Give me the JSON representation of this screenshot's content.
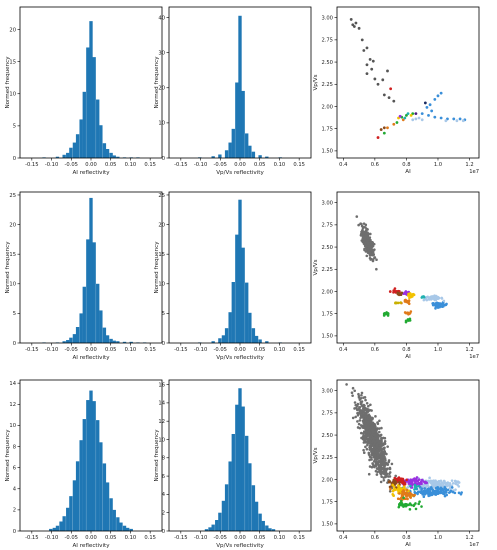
{
  "figure": {
    "xticks_refl": [
      -0.15,
      -0.1,
      -0.05,
      0.0,
      0.05,
      0.1,
      0.15
    ],
    "xticks_ai": [
      0.4,
      0.6,
      0.8,
      1.0,
      1.2
    ],
    "yticks_vpvs": [
      1.5,
      1.75,
      2.0,
      2.25,
      2.5,
      2.75,
      3.0
    ],
    "sci_label": "1e7"
  },
  "chart_data": [
    {
      "type": "bar",
      "xlabel": "AI reflectivity",
      "ylabel": "Normed frequency",
      "xlim": [
        -0.18,
        0.18
      ],
      "ylim": [
        0,
        23.5
      ],
      "yticks": [
        0,
        5,
        10,
        15,
        20
      ],
      "bin_width": 0.0085,
      "bin_centers": [
        -0.119,
        -0.085,
        -0.068,
        -0.059,
        -0.051,
        -0.042,
        -0.034,
        -0.025,
        -0.017,
        -0.008,
        0.0,
        0.008,
        0.017,
        0.025,
        0.034,
        0.042,
        0.051,
        0.059,
        0.068,
        0.085,
        0.102,
        0.119
      ],
      "values": [
        0.1,
        0.2,
        0.5,
        0.8,
        1.6,
        2.4,
        3.7,
        6.0,
        10.3,
        17.2,
        21.3,
        15.7,
        9.1,
        5.1,
        2.3,
        1.4,
        0.8,
        0.4,
        0.2,
        0.1,
        0.1,
        0.1
      ]
    },
    {
      "type": "bar",
      "xlabel": "Vp/Vs reflectivity",
      "ylabel": "Normed frequency",
      "xlim": [
        -0.18,
        0.18
      ],
      "ylim": [
        0,
        43
      ],
      "yticks": [
        0,
        10,
        20,
        30,
        40
      ],
      "bin_width": 0.0085,
      "bin_centers": [
        -0.102,
        -0.068,
        -0.051,
        -0.034,
        -0.025,
        -0.017,
        -0.008,
        0.0,
        0.008,
        0.017,
        0.025,
        0.034,
        0.051,
        0.068,
        0.102
      ],
      "values": [
        0.2,
        0.5,
        1.0,
        2.2,
        4.4,
        8.3,
        21.5,
        40.5,
        19.1,
        7.0,
        3.5,
        1.8,
        0.8,
        0.4,
        0.2
      ]
    },
    {
      "type": "scatter",
      "xlabel": "AI",
      "ylabel": "Vp/Vs",
      "xlim": [
        0.36,
        1.26
      ],
      "ylim": [
        1.42,
        3.12
      ],
      "groups": [
        {
          "color": "#555555",
          "points": [
            [
              0.45,
              2.98
            ],
            [
              0.46,
              2.92
            ],
            [
              0.47,
              2.9
            ],
            [
              0.48,
              2.94
            ],
            [
              0.5,
              2.88
            ],
            [
              0.52,
              2.75
            ],
            [
              0.53,
              2.63
            ],
            [
              0.55,
              2.66
            ],
            [
              0.57,
              2.53
            ],
            [
              0.58,
              2.42
            ],
            [
              0.55,
              2.37
            ],
            [
              0.6,
              2.31
            ],
            [
              0.62,
              2.25
            ],
            [
              0.66,
              2.13
            ],
            [
              0.69,
              2.1
            ],
            [
              0.72,
              2.06
            ],
            [
              0.59,
              2.51
            ],
            [
              0.68,
              2.4
            ],
            [
              0.65,
              2.3
            ],
            [
              0.55,
              2.47
            ]
          ]
        },
        {
          "color": "#3a8fd9",
          "points": [
            [
              0.9,
              1.92
            ],
            [
              0.94,
              1.9
            ],
            [
              0.98,
              1.88
            ],
            [
              1.02,
              1.87
            ],
            [
              1.06,
              1.86
            ],
            [
              1.1,
              1.86
            ],
            [
              1.14,
              1.86
            ],
            [
              1.17,
              1.85
            ],
            [
              0.96,
              1.95
            ],
            [
              1.0,
              2.12
            ],
            [
              1.02,
              2.15
            ],
            [
              0.98,
              2.08
            ],
            [
              0.93,
              1.99
            ],
            [
              0.95,
              2.02
            ]
          ]
        },
        {
          "color": "#a8c8e8",
          "points": [
            [
              0.88,
              1.87
            ],
            [
              0.86,
              1.86
            ],
            [
              0.84,
              1.85
            ],
            [
              0.9,
              1.85
            ],
            [
              1.05,
              1.84
            ],
            [
              1.12,
              1.84
            ],
            [
              1.16,
              1.84
            ]
          ]
        },
        {
          "color": "#22aa33",
          "points": [
            [
              0.66,
              1.7
            ],
            [
              0.74,
              1.82
            ],
            [
              0.77,
              1.88
            ],
            [
              0.8,
              1.9
            ],
            [
              0.84,
              1.92
            ]
          ]
        },
        {
          "color": "#e07a1a",
          "points": [
            [
              0.68,
              1.76
            ],
            [
              0.72,
              1.8
            ],
            [
              0.78,
              1.85
            ]
          ]
        },
        {
          "color": "#f2c200",
          "points": [
            [
              0.75,
              1.87
            ],
            [
              0.83,
              1.9
            ]
          ]
        },
        {
          "color": "#d02020",
          "points": [
            [
              0.62,
              1.65
            ],
            [
              0.7,
              2.2
            ]
          ]
        },
        {
          "color": "#8a4a1a",
          "points": [
            [
              0.64,
              1.74
            ],
            [
              0.66,
              1.76
            ]
          ]
        },
        {
          "color": "#4a1a80",
          "points": [
            [
              0.86,
              1.92
            ]
          ]
        },
        {
          "color": "#1a2a60",
          "points": [
            [
              0.92,
              2.04
            ]
          ]
        },
        {
          "color": "#20b0b0",
          "points": [
            [
              0.79,
              1.87
            ],
            [
              0.81,
              1.92
            ]
          ]
        },
        {
          "color": "#9a30e0",
          "points": [
            [
              0.76,
              1.89
            ]
          ]
        }
      ]
    },
    {
      "type": "bar",
      "xlabel": "AI reflectivity",
      "ylabel": "Normed frequency",
      "xlim": [
        -0.18,
        0.18
      ],
      "ylim": [
        0,
        25.5
      ],
      "yticks": [
        0,
        5,
        10,
        15,
        20,
        25
      ],
      "bin_width": 0.0085,
      "bin_centers": [
        -0.119,
        -0.085,
        -0.068,
        -0.059,
        -0.051,
        -0.042,
        -0.034,
        -0.025,
        -0.017,
        -0.008,
        0.0,
        0.008,
        0.017,
        0.025,
        0.034,
        0.042,
        0.051,
        0.059,
        0.068,
        0.085,
        0.102,
        0.119,
        0.136
      ],
      "values": [
        0.1,
        0.1,
        0.3,
        0.5,
        0.9,
        1.5,
        2.7,
        5.0,
        9.5,
        17.5,
        24.5,
        17.0,
        10.0,
        5.5,
        2.6,
        1.3,
        0.7,
        0.4,
        0.3,
        0.2,
        0.2,
        0.1,
        0.1
      ]
    },
    {
      "type": "bar",
      "xlabel": "Vp/Vs reflectivity",
      "ylabel": "Normed frequency",
      "xlim": [
        -0.18,
        0.18
      ],
      "ylim": [
        0,
        25.5
      ],
      "yticks": [
        0,
        5,
        10,
        15,
        20,
        25
      ],
      "bin_width": 0.0085,
      "bin_centers": [
        -0.102,
        -0.068,
        -0.051,
        -0.042,
        -0.034,
        -0.025,
        -0.017,
        -0.008,
        0.0,
        0.008,
        0.017,
        0.025,
        0.034,
        0.042,
        0.051,
        0.068,
        0.102
      ],
      "values": [
        0.1,
        0.3,
        0.8,
        1.3,
        2.5,
        5.2,
        10.3,
        18.3,
        24.2,
        16.1,
        10.2,
        5.1,
        2.5,
        1.2,
        0.6,
        0.3,
        0.1
      ]
    },
    {
      "type": "scatter",
      "xlabel": "AI",
      "ylabel": "Vp/Vs",
      "xlim": [
        0.36,
        1.26
      ],
      "ylim": [
        1.42,
        3.12
      ],
      "clusters": [
        {
          "color": "#6e6e6e",
          "cx": 0.555,
          "cy": 2.55,
          "sx": 0.02,
          "sy": 0.09,
          "rho": -0.7,
          "n": 260
        },
        {
          "color": "#3a8fd9",
          "cx": 1.01,
          "cy": 1.85,
          "sx": 0.025,
          "sy": 0.012,
          "rho": 0,
          "n": 45
        },
        {
          "color": "#a8c8e8",
          "cx": 0.97,
          "cy": 1.925,
          "sx": 0.03,
          "sy": 0.012,
          "rho": 0,
          "n": 45
        },
        {
          "color": "#d02020",
          "cx": 0.735,
          "cy": 2.0,
          "sx": 0.018,
          "sy": 0.01,
          "rho": 0,
          "n": 18
        },
        {
          "color": "#9a30e0",
          "cx": 0.8,
          "cy": 1.98,
          "sx": 0.015,
          "sy": 0.01,
          "rho": 0,
          "n": 15
        },
        {
          "color": "#8a4a1a",
          "cx": 0.755,
          "cy": 1.97,
          "sx": 0.01,
          "sy": 0.01,
          "rho": 0,
          "n": 10
        },
        {
          "color": "#f2c200",
          "cx": 0.83,
          "cy": 1.95,
          "sx": 0.012,
          "sy": 0.015,
          "rho": 0,
          "n": 14
        },
        {
          "color": "#e07a1a",
          "cx": 0.8,
          "cy": 1.88,
          "sx": 0.012,
          "sy": 0.012,
          "rho": 0,
          "n": 12
        },
        {
          "color": "#e07a1a",
          "cx": 0.81,
          "cy": 1.76,
          "sx": 0.012,
          "sy": 0.01,
          "rho": 0,
          "n": 10
        },
        {
          "color": "#22aa33",
          "cx": 0.67,
          "cy": 1.74,
          "sx": 0.015,
          "sy": 0.01,
          "rho": 0,
          "n": 12
        },
        {
          "color": "#22aa33",
          "cx": 0.82,
          "cy": 1.68,
          "sx": 0.01,
          "sy": 0.01,
          "rho": 0,
          "n": 8
        },
        {
          "color": "#c8b000",
          "cx": 0.74,
          "cy": 1.87,
          "sx": 0.01,
          "sy": 0.008,
          "rho": 0,
          "n": 6
        },
        {
          "color": "#20b0b0",
          "cx": 0.91,
          "cy": 1.94,
          "sx": 0.008,
          "sy": 0.008,
          "rho": 0,
          "n": 6
        }
      ]
    },
    {
      "type": "bar",
      "xlabel": "AI reflectivity",
      "ylabel": "Normed frequency",
      "xlim": [
        -0.18,
        0.18
      ],
      "ylim": [
        0,
        14.3
      ],
      "yticks": [
        0,
        2,
        4,
        6,
        8,
        10,
        12,
        14
      ],
      "bin_width": 0.0085,
      "bin_centers": [
        -0.102,
        -0.093,
        -0.085,
        -0.076,
        -0.068,
        -0.059,
        -0.051,
        -0.042,
        -0.034,
        -0.025,
        -0.017,
        -0.008,
        0.0,
        0.008,
        0.017,
        0.025,
        0.034,
        0.042,
        0.051,
        0.059,
        0.068,
        0.076,
        0.085,
        0.093,
        0.102
      ],
      "values": [
        0.2,
        0.3,
        0.5,
        0.9,
        1.4,
        2.2,
        3.3,
        4.8,
        6.6,
        8.6,
        10.6,
        12.4,
        13.3,
        12.3,
        10.5,
        8.4,
        6.4,
        4.6,
        3.1,
        2.0,
        1.3,
        0.8,
        0.5,
        0.3,
        0.2
      ]
    },
    {
      "type": "bar",
      "xlabel": "Vp/Vs reflectivity",
      "ylabel": "Normed frequency",
      "xlim": [
        -0.18,
        0.18
      ],
      "ylim": [
        0,
        16.5
      ],
      "yticks": [
        0,
        2,
        4,
        6,
        8,
        10,
        12,
        14,
        16
      ],
      "bin_width": 0.0085,
      "bin_centers": [
        -0.085,
        -0.076,
        -0.068,
        -0.059,
        -0.051,
        -0.042,
        -0.034,
        -0.025,
        -0.017,
        -0.008,
        0.0,
        0.008,
        0.017,
        0.025,
        0.034,
        0.042,
        0.051,
        0.059,
        0.068,
        0.076,
        0.085
      ],
      "values": [
        0.2,
        0.4,
        0.7,
        1.2,
        2.0,
        3.3,
        5.1,
        7.6,
        10.6,
        13.8,
        15.6,
        13.6,
        10.4,
        7.4,
        5.0,
        3.2,
        1.9,
        1.1,
        0.6,
        0.3,
        0.2
      ]
    },
    {
      "type": "scatter",
      "xlabel": "AI",
      "ylabel": "Vp/Vs",
      "xlim": [
        0.36,
        1.26
      ],
      "ylim": [
        1.42,
        3.12
      ],
      "clusters": [
        {
          "color": "#6e6e6e",
          "cx": 0.59,
          "cy": 2.45,
          "sx": 0.045,
          "sy": 0.2,
          "rho": -0.8,
          "n": 900
        },
        {
          "color": "#a8c8e8",
          "cx": 0.98,
          "cy": 1.94,
          "sx": 0.07,
          "sy": 0.03,
          "rho": 0,
          "n": 140
        },
        {
          "color": "#3a8fd9",
          "cx": 0.95,
          "cy": 1.86,
          "sx": 0.07,
          "sy": 0.025,
          "rho": 0,
          "n": 140
        },
        {
          "color": "#9a30e0",
          "cx": 0.85,
          "cy": 1.97,
          "sx": 0.04,
          "sy": 0.025,
          "rho": 0,
          "n": 60
        },
        {
          "color": "#d02020",
          "cx": 0.75,
          "cy": 1.99,
          "sx": 0.03,
          "sy": 0.025,
          "rho": 0,
          "n": 40
        },
        {
          "color": "#8a4a1a",
          "cx": 0.73,
          "cy": 1.96,
          "sx": 0.02,
          "sy": 0.02,
          "rho": 0,
          "n": 20
        },
        {
          "color": "#f2c200",
          "cx": 0.76,
          "cy": 1.88,
          "sx": 0.025,
          "sy": 0.03,
          "rho": 0,
          "n": 40
        },
        {
          "color": "#e07a1a",
          "cx": 0.8,
          "cy": 1.83,
          "sx": 0.03,
          "sy": 0.03,
          "rho": 0,
          "n": 45
        },
        {
          "color": "#22aa33",
          "cx": 0.8,
          "cy": 1.72,
          "sx": 0.035,
          "sy": 0.03,
          "rho": 0,
          "n": 30
        },
        {
          "color": "#20b0b0",
          "cx": 0.86,
          "cy": 1.92,
          "sx": 0.015,
          "sy": 0.012,
          "rho": 0,
          "n": 10
        }
      ]
    }
  ]
}
